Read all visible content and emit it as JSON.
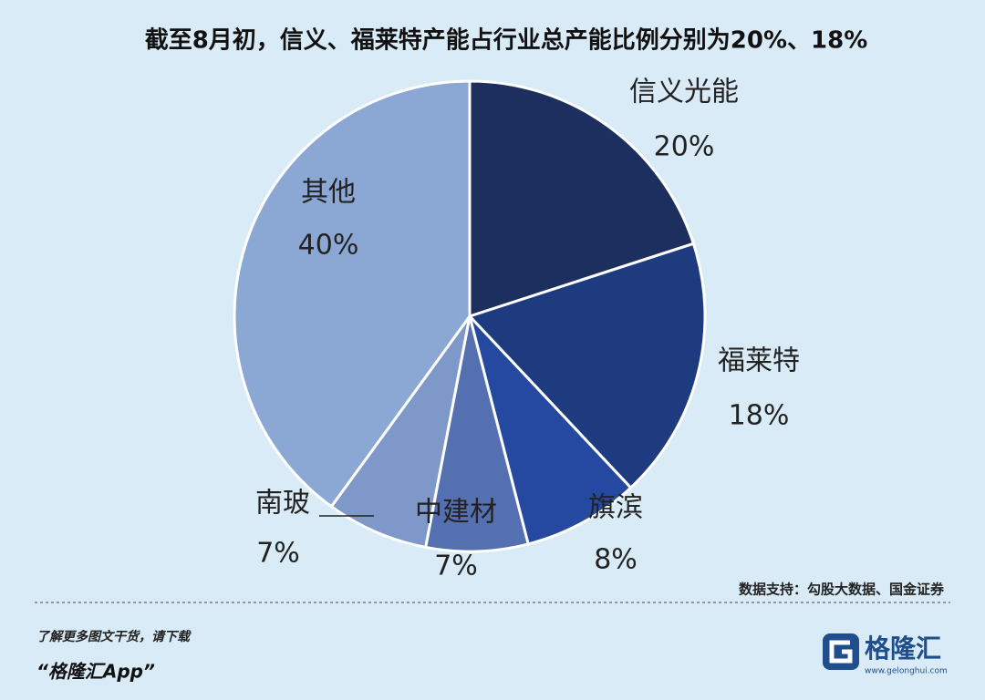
{
  "chart_data": {
    "type": "pie",
    "title": "截至8月初，信义、福莱特产能占行业总产能比例分别为20%、18%",
    "categories": [
      "信义光能",
      "福莱特",
      "旗滨",
      "中建材",
      "南玻",
      "其他"
    ],
    "values": [
      20,
      18,
      8,
      7,
      7,
      40
    ],
    "value_labels": [
      "20%",
      "18%",
      "8%",
      "7%",
      "7%",
      "40%"
    ],
    "colors": [
      "#1c2f5f",
      "#1f3b80",
      "#2548a0",
      "#5570b1",
      "#7e99c9",
      "#8ba7d4"
    ],
    "source": "数据支持：勾股大数据、国金证券"
  },
  "footer": {
    "promo": "了解更多图文干货，请下载",
    "app": "“格隆汇App”",
    "logo": "格隆汇",
    "url": "www.gelonghui.com"
  }
}
